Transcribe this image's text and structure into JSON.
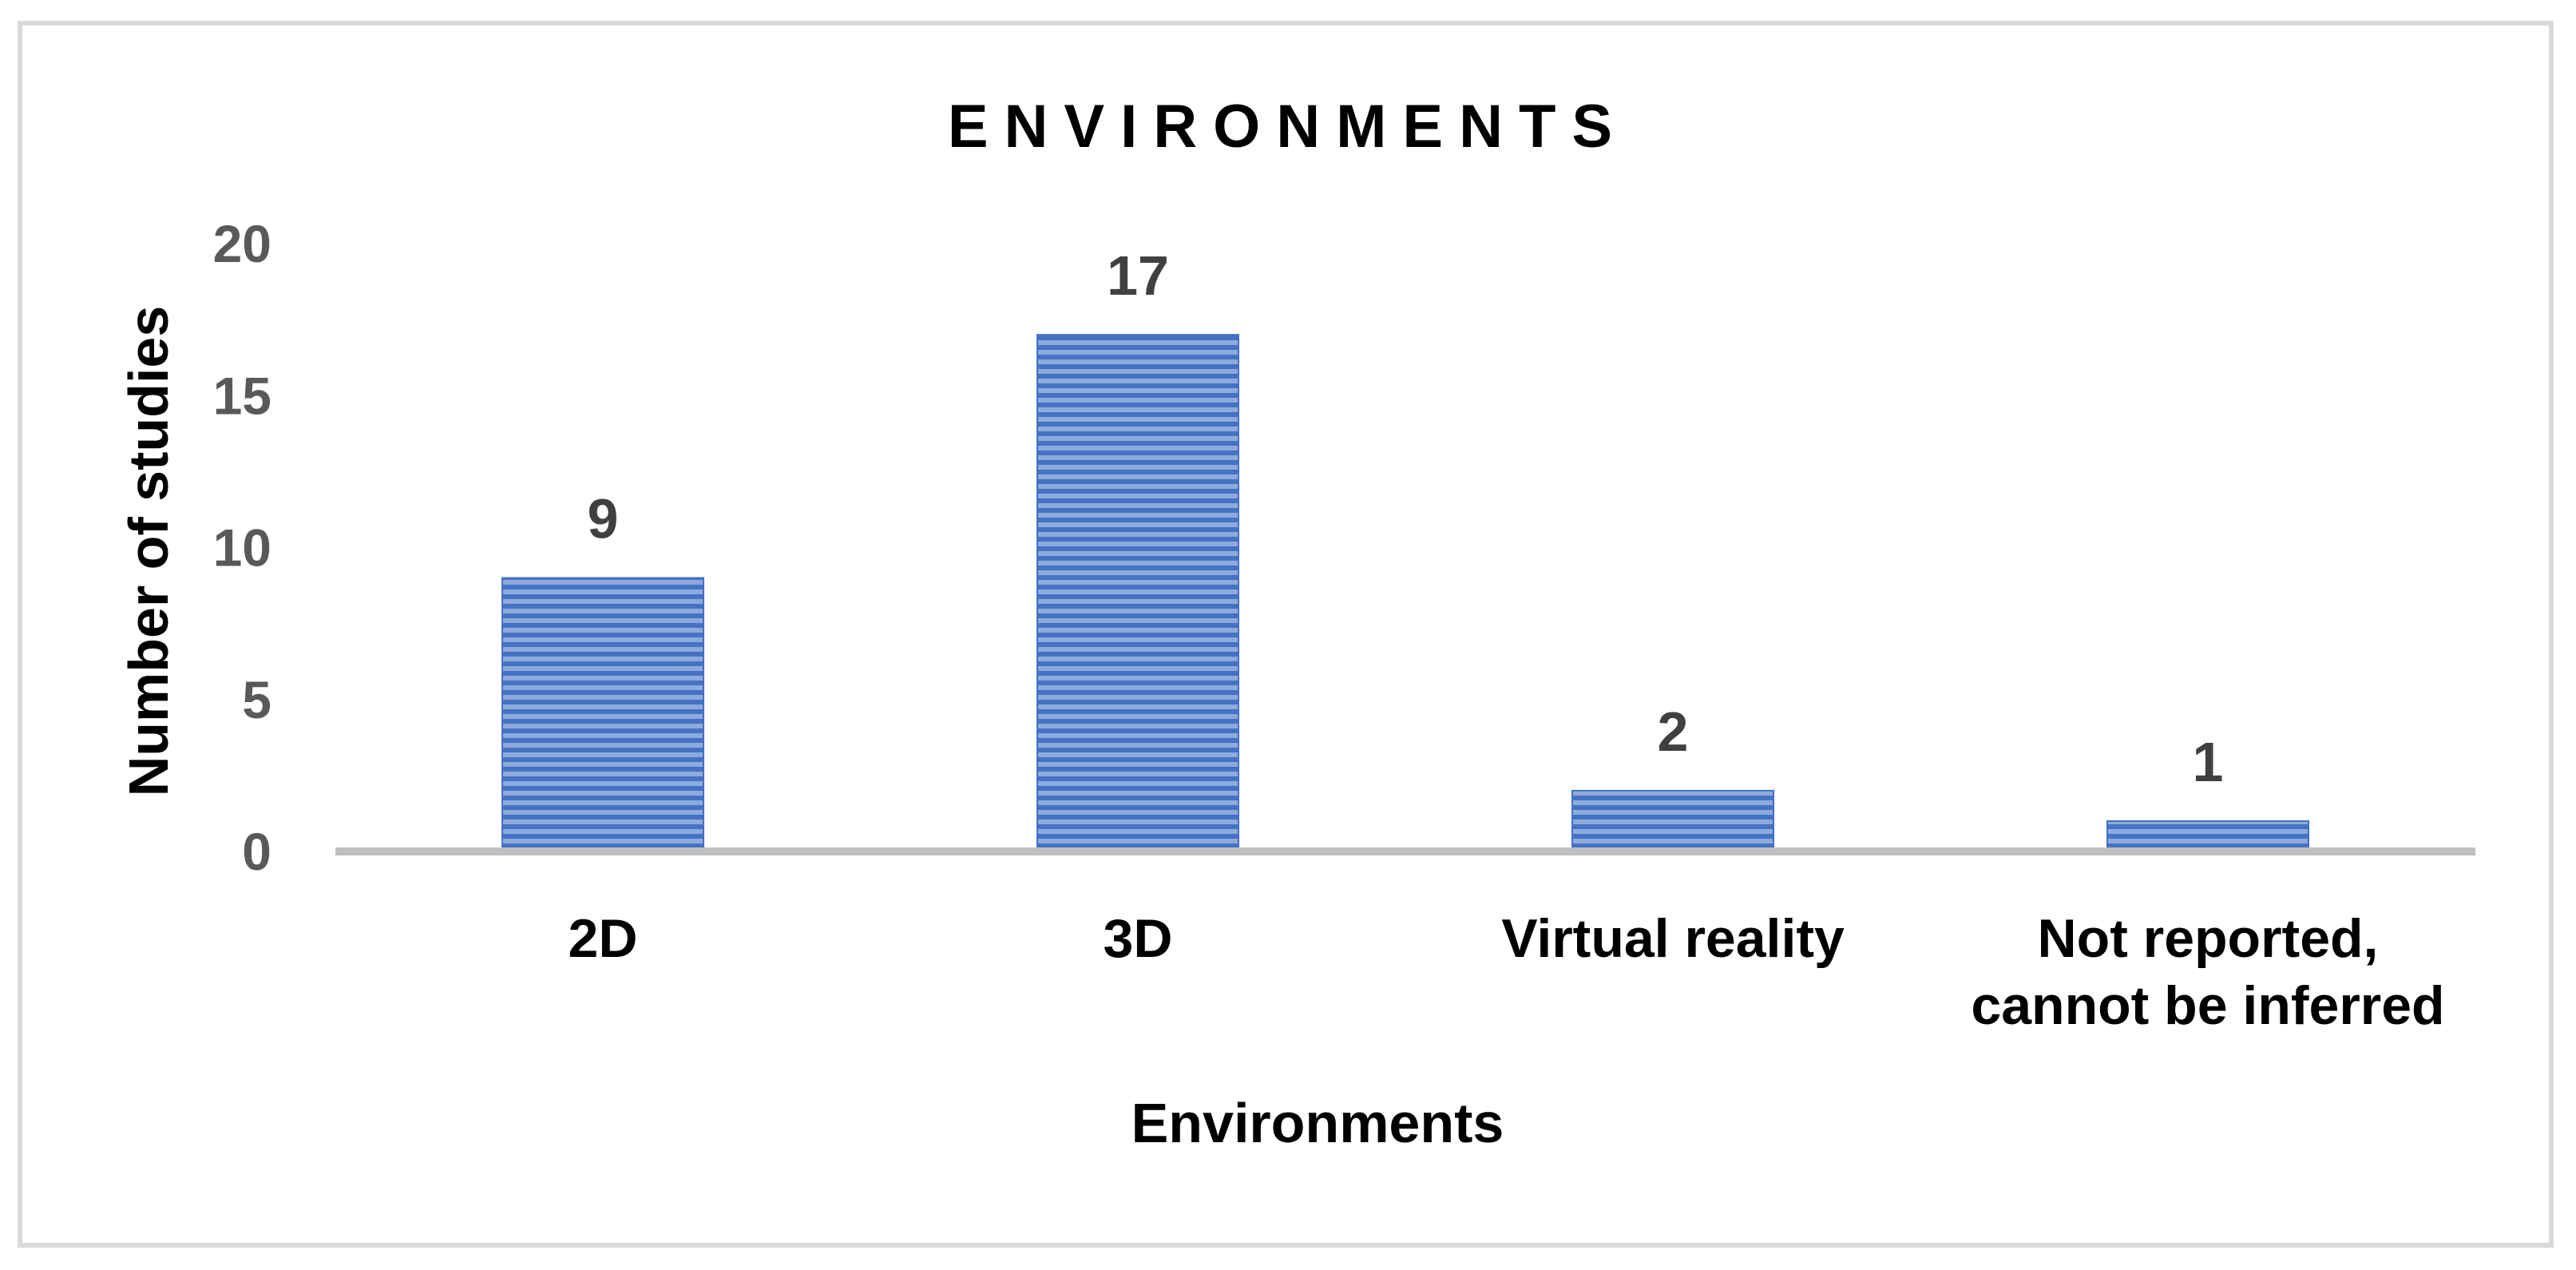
{
  "chart_data": {
    "type": "bar",
    "title": "ENVIRONMENTS",
    "xlabel": "Environments",
    "ylabel": "Number of studies",
    "categories": [
      [
        "2D"
      ],
      [
        "3D"
      ],
      [
        "Virtual reality"
      ],
      [
        "Not reported,",
        "cannot be inferred"
      ]
    ],
    "values": [
      9,
      17,
      2,
      1
    ],
    "ylim": [
      0,
      20
    ],
    "yticks": [
      "0",
      "5",
      "10",
      "15",
      "20"
    ],
    "data_labels": [
      "9",
      "17",
      "2",
      "1"
    ],
    "grid": false,
    "legend": "none",
    "colors": {
      "bar_light": "#8eaadb",
      "bar_dark": "#4472c4",
      "axis_line": "#bfbfbf",
      "frame": "#d9d9d9"
    }
  }
}
